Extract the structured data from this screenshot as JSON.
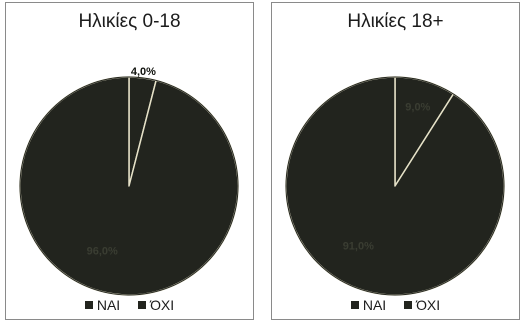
{
  "colors": {
    "pie_fill": "#22241e",
    "slice_edge": "#e6e2c8",
    "label_dark": "#11130e",
    "label_light": "#3a3d32"
  },
  "chart_data": [
    {
      "type": "pie",
      "title": "Ηλικίες 0-18",
      "categories": [
        "ΝΑΙ",
        "ΌΧΙ"
      ],
      "values": [
        4.0,
        96.0
      ],
      "data_labels": [
        "4,0%",
        "96,0%"
      ],
      "legend_position": "bottom"
    },
    {
      "type": "pie",
      "title": "Ηλικίες 18+",
      "categories": [
        "ΝΑΙ",
        "ΌΧΙ"
      ],
      "values": [
        9.0,
        91.0
      ],
      "data_labels": [
        "9,0%",
        "91,0%"
      ],
      "legend_position": "bottom"
    }
  ]
}
